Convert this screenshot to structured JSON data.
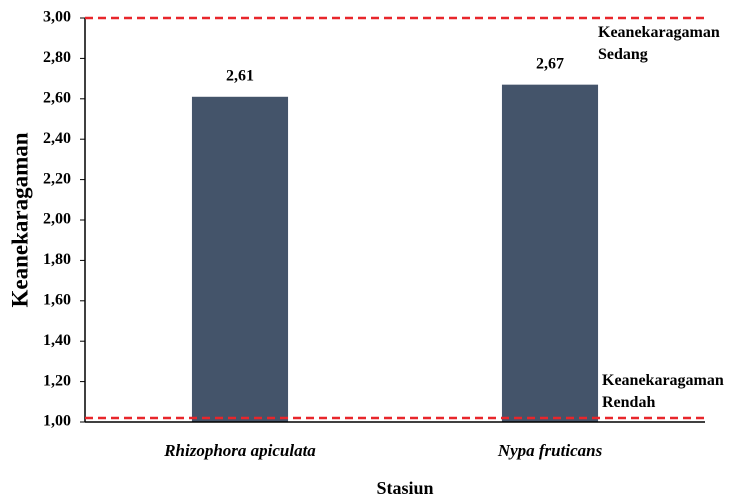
{
  "chart_data": {
    "type": "bar",
    "categories": [
      "Rhizophora apiculata",
      "Nypa fruticans"
    ],
    "values": [
      2.61,
      2.67
    ],
    "value_labels": [
      "2,61",
      "2,67"
    ],
    "color": "#44546a",
    "ylabel": "Keanekaragaman",
    "xlabel": "Stasiun",
    "ylim": [
      1,
      3
    ],
    "yticks": [
      {
        "value": 1,
        "label": "1,00"
      },
      {
        "value": 1.2,
        "label": "1,20"
      },
      {
        "value": 1.4,
        "label": "1,40"
      },
      {
        "value": 1.6,
        "label": "1,60"
      },
      {
        "value": 1.8,
        "label": "1,80"
      },
      {
        "value": 2,
        "label": "2,00"
      },
      {
        "value": 2.2,
        "label": "2,20"
      },
      {
        "value": 2.4,
        "label": "2,40"
      },
      {
        "value": 2.6,
        "label": "2,60"
      },
      {
        "value": 2.8,
        "label": "2,80"
      },
      {
        "value": 3,
        "label": "3,00"
      }
    ],
    "grid": false,
    "reference_lines": [
      {
        "value": 3,
        "label": "Keanekaragaman Sedang",
        "color": "#e8262b"
      },
      {
        "value": 1.02,
        "label": "Keanekaragaman Rendah",
        "color": "#e8262b"
      }
    ]
  }
}
